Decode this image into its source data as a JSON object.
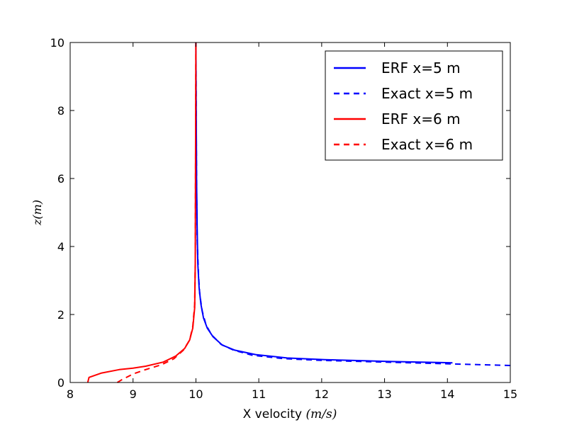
{
  "chart_data": {
    "type": "line",
    "title": "",
    "xlabel": "X velocity",
    "xlabel_unit": "(m/s)",
    "ylabel": "z(m)",
    "xlim": [
      8,
      15
    ],
    "ylim": [
      0,
      10
    ],
    "xticks": [
      "8",
      "9",
      "10",
      "11",
      "12",
      "13",
      "14",
      "15"
    ],
    "yticks": [
      "0",
      "2",
      "4",
      "6",
      "8",
      "10"
    ],
    "grid": false,
    "legend_position": "top-right",
    "series": [
      {
        "name": "ERF x=5 m",
        "color": "#0000ff",
        "style": "solid",
        "x": [
          14.08,
          13.05,
          12.05,
          11.45,
          10.95,
          10.62,
          10.42,
          10.27,
          10.18,
          10.12,
          10.08,
          10.05,
          10.03,
          10.02,
          10.01,
          10.0
        ],
        "y": [
          0.58,
          0.62,
          0.67,
          0.72,
          0.82,
          0.95,
          1.1,
          1.35,
          1.6,
          1.9,
          2.3,
          2.8,
          3.5,
          4.5,
          6.0,
          10.0
        ]
      },
      {
        "name": "Exact x=5 m",
        "color": "#0000ff",
        "style": "dashed",
        "x": [
          15.0,
          14.0,
          13.0,
          12.0,
          11.4,
          10.9,
          10.6,
          10.4,
          10.25,
          10.16,
          10.1,
          10.06,
          10.04,
          10.02,
          10.01,
          10.0
        ],
        "y": [
          0.5,
          0.55,
          0.6,
          0.65,
          0.7,
          0.8,
          0.95,
          1.12,
          1.4,
          1.7,
          2.1,
          2.6,
          3.2,
          4.2,
          6.0,
          10.0
        ]
      },
      {
        "name": "ERF x=6 m",
        "color": "#ff0000",
        "style": "solid",
        "x": [
          8.28,
          8.3,
          8.5,
          8.78,
          9.0,
          9.2,
          9.48,
          9.68,
          9.82,
          9.9,
          9.95,
          9.98,
          9.99,
          10.0
        ],
        "y": [
          0.0,
          0.15,
          0.28,
          0.38,
          0.42,
          0.48,
          0.6,
          0.78,
          1.0,
          1.25,
          1.6,
          2.2,
          3.5,
          10.0
        ]
      },
      {
        "name": "Exact x=6 m",
        "color": "#ff0000",
        "style": "dashed",
        "x": [
          8.75,
          8.82,
          9.0,
          9.2,
          9.45,
          9.65,
          9.8,
          9.9,
          9.95,
          9.98,
          9.99,
          10.0
        ],
        "y": [
          0.0,
          0.08,
          0.25,
          0.38,
          0.52,
          0.7,
          0.95,
          1.25,
          1.65,
          2.3,
          3.5,
          10.0
        ]
      }
    ]
  }
}
